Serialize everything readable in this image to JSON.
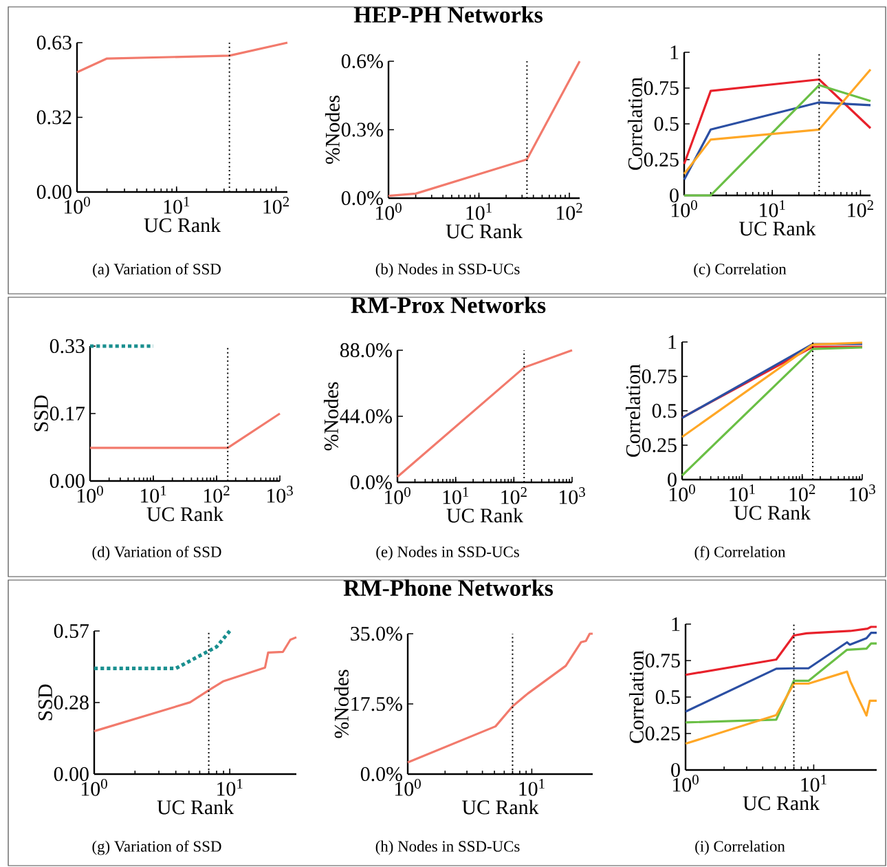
{
  "chart_data": [
    {
      "type": "line",
      "annotations": [
        "(a) Variation of SSD"
      ],
      "xlabel": "UC Rank",
      "log": "x",
      "xlim": [
        1,
        130
      ],
      "ylim": [
        0,
        0.63
      ],
      "xticks": [
        {
          "value": 1,
          "label": "10$^{0}$"
        },
        {
          "value": 10,
          "label": "10$^{1}$"
        },
        {
          "value": 100,
          "label": "10$^{2}$"
        }
      ],
      "yticks": [
        {
          "value": 0,
          "label": "0.00"
        },
        {
          "value": 0.315,
          "label": "0.32"
        },
        {
          "value": 0.63,
          "label": "0.63"
        }
      ],
      "ref_lines": [
        {
          "axis": "x",
          "value": 34,
          "color": "#000000",
          "line_style": "dotted"
        }
      ],
      "series": [
        {
          "color": "#f27a6c",
          "x": [
            1,
            2,
            34,
            130
          ],
          "values": [
            0.505,
            0.563,
            0.575,
            0.63
          ]
        }
      ]
    },
    {
      "type": "line",
      "title": "HEP-PH Networks",
      "annotations": [
        "(b) Nodes in SSD-UCs"
      ],
      "xlabel": "UC Rank",
      "ylabel": "%Nodes",
      "log": "x",
      "xlim": [
        1,
        130
      ],
      "ylim": [
        0,
        0.6
      ],
      "xticks": [
        {
          "value": 1,
          "label": "10$^{0}$"
        },
        {
          "value": 10,
          "label": "10$^{1}$"
        },
        {
          "value": 100,
          "label": "10$^{2}$"
        }
      ],
      "yticks": [
        {
          "value": 0,
          "label": "0.0%"
        },
        {
          "value": 0.3,
          "label": "0.3%"
        },
        {
          "value": 0.6,
          "label": "0.6%"
        }
      ],
      "ref_lines": [
        {
          "axis": "x",
          "value": 34,
          "color": "#000000",
          "line_style": "dotted"
        }
      ],
      "series": [
        {
          "color": "#f27a6c",
          "x": [
            1,
            2,
            34,
            130
          ],
          "values": [
            0.01,
            0.02,
            0.17,
            0.6
          ]
        }
      ]
    },
    {
      "type": "line",
      "annotations": [
        "(c) Correlation"
      ],
      "xlabel": "UC Rank",
      "ylabel": "Correlation",
      "log": "x",
      "xlim": [
        1,
        130
      ],
      "ylim": [
        0,
        1
      ],
      "xticks": [
        {
          "value": 1,
          "label": "10$^{0}$"
        },
        {
          "value": 10,
          "label": "10$^{1}$"
        },
        {
          "value": 100,
          "label": "10$^{2}$"
        }
      ],
      "yticks": [
        0,
        0.25,
        0.5,
        0.75,
        1
      ],
      "ref_lines": [
        {
          "axis": "x",
          "value": 34,
          "color": "#000000",
          "line_style": "dotted"
        }
      ],
      "series": [
        {
          "color": "#e8212b",
          "x": [
            1,
            2,
            34,
            130
          ],
          "values": [
            0.22,
            0.73,
            0.81,
            0.47
          ]
        },
        {
          "color": "#2b4fa3",
          "x": [
            1,
            2,
            34,
            130
          ],
          "values": [
            0.11,
            0.46,
            0.65,
            0.63
          ]
        },
        {
          "color": "#6abf45",
          "x": [
            1,
            2,
            34,
            130
          ],
          "values": [
            0,
            0,
            0.77,
            0.66
          ]
        },
        {
          "color": "#ffa726",
          "x": [
            1,
            2,
            34,
            130
          ],
          "values": [
            0.15,
            0.39,
            0.46,
            0.88
          ]
        }
      ]
    },
    {
      "type": "line",
      "annotations": [
        "(d) Variation of SSD"
      ],
      "xlabel": "UC Rank",
      "ylabel": "SSD",
      "log": "x",
      "xlim": [
        1,
        1000
      ],
      "ylim": [
        0,
        0.33
      ],
      "xticks": [
        {
          "value": 1,
          "label": "10$^{0}$"
        },
        {
          "value": 10,
          "label": "10$^{1}$"
        },
        {
          "value": 100,
          "label": "10$^{2}$"
        },
        {
          "value": 1000,
          "label": "10$^{3}$"
        }
      ],
      "yticks": [
        {
          "value": 0,
          "label": "0.00"
        },
        {
          "value": 0.165,
          "label": "0.17"
        },
        {
          "value": 0.33,
          "label": "0.33"
        }
      ],
      "ref_lines": [
        {
          "axis": "x",
          "value": 150,
          "color": "#000000",
          "line_style": "dotted"
        }
      ],
      "series": [
        {
          "color": "#f27a6c",
          "x": [
            1,
            150,
            1000
          ],
          "values": [
            0.081,
            0.081,
            0.165
          ]
        },
        {
          "color": "#1a8f8f",
          "line_style": "dotted",
          "x": [
            1,
            10
          ],
          "values": [
            0.33,
            0.33
          ]
        }
      ]
    },
    {
      "type": "line",
      "title": "RM-Prox Networks",
      "annotations": [
        "(e) Nodes in SSD-UCs"
      ],
      "xlabel": "UC Rank",
      "ylabel": "%Nodes",
      "log": "x",
      "xlim": [
        1,
        1000
      ],
      "ylim": [
        0,
        88
      ],
      "xticks": [
        {
          "value": 1,
          "label": "10$^{0}$"
        },
        {
          "value": 10,
          "label": "10$^{1}$"
        },
        {
          "value": 100,
          "label": "10$^{2}$"
        },
        {
          "value": 1000,
          "label": "10$^{3}$"
        }
      ],
      "yticks": [
        {
          "value": 0,
          "label": "0.0%"
        },
        {
          "value": 44,
          "label": "44.0%"
        },
        {
          "value": 88,
          "label": "88.0%"
        }
      ],
      "ref_lines": [
        {
          "axis": "x",
          "value": 150,
          "color": "#000000",
          "line_style": "dotted"
        }
      ],
      "series": [
        {
          "color": "#f27a6c",
          "x": [
            1,
            150,
            1000
          ],
          "values": [
            3.7,
            76.5,
            88
          ]
        }
      ]
    },
    {
      "type": "line",
      "annotations": [
        "(f) Correlation"
      ],
      "xlabel": "UC Rank",
      "ylabel": "Correlation",
      "log": "x",
      "xlim": [
        1,
        1000
      ],
      "ylim": [
        0,
        1
      ],
      "xticks": [
        {
          "value": 1,
          "label": "10$^{0}$"
        },
        {
          "value": 10,
          "label": "10$^{1}$"
        },
        {
          "value": 100,
          "label": "10$^{2}$"
        },
        {
          "value": 1000,
          "label": "10$^{3}$"
        }
      ],
      "yticks": [
        0,
        0.25,
        0.5,
        0.75,
        1
      ],
      "ref_lines": [
        {
          "axis": "x",
          "value": 150,
          "color": "#000000",
          "line_style": "dotted"
        }
      ],
      "series": [
        {
          "color": "#e8212b",
          "x": [
            1,
            150,
            1000
          ],
          "values": [
            0.45,
            0.965,
            0.965
          ]
        },
        {
          "color": "#2b4fa3",
          "x": [
            1,
            150,
            1000
          ],
          "values": [
            0.448,
            0.985,
            0.985
          ]
        },
        {
          "color": "#6abf45",
          "x": [
            1,
            150,
            1000
          ],
          "values": [
            0.03,
            0.949,
            0.96
          ]
        },
        {
          "color": "#ffa726",
          "x": [
            1,
            150,
            1000
          ],
          "values": [
            0.31,
            0.982,
            0.995
          ]
        }
      ]
    },
    {
      "type": "line",
      "annotations": [
        "(g) Variation of SSD"
      ],
      "xlabel": "UC Rank",
      "ylabel": "SSD",
      "log": "x",
      "xlim": [
        1,
        31
      ],
      "ylim": [
        0,
        0.57
      ],
      "xticks": [
        {
          "value": 1,
          "label": "10$^{0}$"
        },
        {
          "value": 10,
          "label": "10$^{1}$"
        }
      ],
      "yticks": [
        {
          "value": 0,
          "label": "0.00"
        },
        {
          "value": 0.285,
          "label": "0.28"
        },
        {
          "value": 0.57,
          "label": "0.57"
        }
      ],
      "ref_lines": [
        {
          "axis": "x",
          "value": 7,
          "color": "#000000",
          "line_style": "dotted"
        }
      ],
      "series": [
        {
          "color": "#f27a6c",
          "x": [
            1,
            5.1,
            7.1,
            9,
            18.2,
            19.2,
            24.7,
            28,
            31
          ],
          "values": [
            0.171,
            0.286,
            0.336,
            0.37,
            0.424,
            0.484,
            0.487,
            0.535,
            0.545
          ]
        },
        {
          "color": "#1a8f8f",
          "line_style": "dotted",
          "x": [
            1,
            4,
            8,
            10
          ],
          "values": [
            0.421,
            0.421,
            0.507,
            0.57
          ]
        }
      ]
    },
    {
      "type": "line",
      "title": "RM-Phone Networks",
      "annotations": [
        "(h) Nodes in SSD-UCs"
      ],
      "xlabel": "UC Rank",
      "ylabel": "%Nodes",
      "log": "x",
      "xlim": [
        1,
        31
      ],
      "ylim": [
        0,
        35
      ],
      "xticks": [
        {
          "value": 1,
          "label": "10$^{0}$"
        },
        {
          "value": 10,
          "label": "10$^{1}$"
        }
      ],
      "yticks": [
        {
          "value": 0,
          "label": "0.0%"
        },
        {
          "value": 17.5,
          "label": "17.5%"
        },
        {
          "value": 35,
          "label": "35.0%"
        }
      ],
      "ref_lines": [
        {
          "axis": "x",
          "value": 7,
          "color": "#000000",
          "line_style": "dotted"
        }
      ],
      "series": [
        {
          "color": "#f27a6c",
          "x": [
            1,
            5.1,
            7,
            9.3,
            18.8,
            25,
            27.3,
            29.3,
            31
          ],
          "values": [
            2.9,
            11.9,
            16.9,
            20.1,
            27,
            32.9,
            33.2,
            35,
            35
          ]
        }
      ]
    },
    {
      "type": "line",
      "annotations": [
        "(i) Correlation"
      ],
      "xlabel": "UC Rank",
      "ylabel": "Correlation",
      "log": "x",
      "xlim": [
        1,
        31
      ],
      "ylim": [
        0,
        1
      ],
      "xticks": [
        {
          "value": 1,
          "label": "10$^{0}$"
        },
        {
          "value": 10,
          "label": "10$^{1}$"
        }
      ],
      "yticks": [
        0,
        0.25,
        0.5,
        0.75,
        1
      ],
      "ref_lines": [
        {
          "axis": "x",
          "value": 7,
          "color": "#000000",
          "line_style": "dotted"
        }
      ],
      "series": [
        {
          "color": "#e8212b",
          "x": [
            1,
            5.1,
            7,
            8.8,
            19.3,
            26.3,
            28,
            31
          ],
          "values": [
            0.652,
            0.757,
            0.922,
            0.937,
            0.953,
            0.969,
            0.981,
            0.981
          ]
        },
        {
          "color": "#2b4fa3",
          "x": [
            1,
            5.1,
            7,
            9.1,
            18.2,
            19.1,
            25.8,
            28,
            31
          ],
          "values": [
            0.4,
            0.694,
            0.697,
            0.697,
            0.875,
            0.859,
            0.903,
            0.94,
            0.94
          ]
        },
        {
          "color": "#6abf45",
          "x": [
            1,
            5.1,
            7,
            9.1,
            18.2,
            25.8,
            28,
            31
          ],
          "values": [
            0.326,
            0.345,
            0.611,
            0.611,
            0.824,
            0.832,
            0.867,
            0.867
          ]
        },
        {
          "color": "#ffa726",
          "x": [
            1,
            5.1,
            7,
            9.1,
            18.2,
            19.3,
            25.8,
            27.4,
            31
          ],
          "values": [
            0.18,
            0.376,
            0.592,
            0.592,
            0.674,
            0.608,
            0.373,
            0.475,
            0.475
          ]
        }
      ]
    }
  ]
}
